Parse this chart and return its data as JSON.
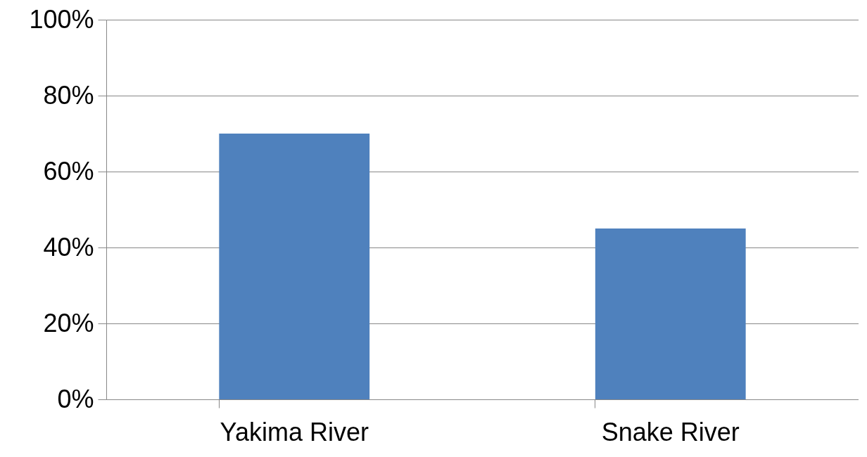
{
  "chart_data": {
    "type": "bar",
    "categories": [
      "Yakima River",
      "Snake River"
    ],
    "values": [
      70,
      45
    ],
    "color": "#4f81bd",
    "ylim": [
      0,
      100
    ],
    "yticks": [
      {
        "value": 0,
        "label": "0%"
      },
      {
        "value": 20,
        "label": "20%"
      },
      {
        "value": 40,
        "label": "40%"
      },
      {
        "value": 60,
        "label": "60%"
      },
      {
        "value": 80,
        "label": "80%"
      },
      {
        "value": 100,
        "label": "100%"
      }
    ],
    "grid": "y"
  }
}
